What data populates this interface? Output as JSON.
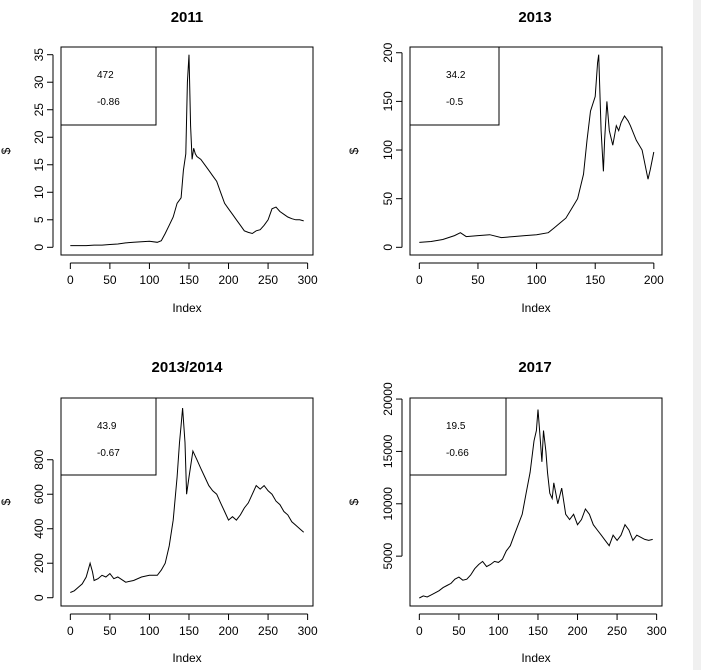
{
  "colors": {
    "background": "#ffffff",
    "line": "#000000",
    "right_edge": "#f0f0f0"
  },
  "chart_data": [
    {
      "type": "line",
      "title": "2011",
      "xlabel": "Index",
      "ylabel": "$",
      "xlim": [
        0,
        300
      ],
      "ylim": [
        0,
        35
      ],
      "xticks": [
        "0",
        "50",
        "100",
        "150",
        "200",
        "250",
        "300"
      ],
      "yticks": [
        "0",
        "5",
        "10",
        "15",
        "20",
        "25",
        "30",
        "35"
      ],
      "legend_text": [
        "472",
        "-0.86"
      ],
      "legend_position": "top-left",
      "series": [
        {
          "x": [
            0,
            10,
            20,
            30,
            40,
            50,
            60,
            70,
            80,
            90,
            100,
            110,
            115,
            120,
            125,
            130,
            135,
            140,
            143,
            146,
            148,
            150,
            152,
            154,
            156,
            158,
            160,
            165,
            170,
            175,
            180,
            185,
            190,
            195,
            200,
            205,
            210,
            215,
            220,
            225,
            230,
            235,
            240,
            245,
            250,
            255,
            260,
            265,
            270,
            275,
            280,
            285,
            290,
            295
          ],
          "y": [
            0.3,
            0.3,
            0.3,
            0.4,
            0.4,
            0.5,
            0.6,
            0.8,
            0.9,
            1.0,
            1.1,
            0.9,
            1.2,
            2.5,
            4.0,
            5.5,
            8.0,
            9.0,
            14.0,
            17.0,
            30.0,
            35.0,
            22.0,
            16.0,
            18.0,
            17.0,
            16.5,
            16.0,
            15.0,
            14.0,
            13.0,
            12.0,
            10.0,
            8.0,
            7.0,
            6.0,
            5.0,
            4.0,
            3.0,
            2.7,
            2.5,
            3.0,
            3.2,
            4.0,
            5.0,
            7.0,
            7.3,
            6.5,
            6.0,
            5.5,
            5.2,
            5.0,
            5.0,
            4.8
          ]
        }
      ]
    },
    {
      "type": "line",
      "title": "2013",
      "xlabel": "Index",
      "ylabel": "$",
      "xlim": [
        0,
        200
      ],
      "ylim": [
        0,
        200
      ],
      "xticks": [
        "0",
        "50",
        "100",
        "150",
        "200"
      ],
      "yticks": [
        "0",
        "50",
        "100",
        "150",
        "200"
      ],
      "legend_text": [
        "34.2",
        "-0.5"
      ],
      "legend_position": "top-left",
      "series": [
        {
          "x": [
            0,
            10,
            20,
            30,
            35,
            40,
            50,
            60,
            70,
            80,
            90,
            100,
            110,
            115,
            120,
            125,
            130,
            135,
            140,
            143,
            146,
            150,
            152,
            153,
            155,
            157,
            158,
            160,
            162,
            165,
            168,
            170,
            172,
            175,
            178,
            180,
            185,
            190,
            195,
            197,
            200
          ],
          "y": [
            5,
            6,
            8,
            12,
            15,
            11,
            12,
            13,
            10,
            11,
            12,
            13,
            15,
            20,
            25,
            30,
            40,
            50,
            75,
            110,
            140,
            155,
            190,
            198,
            120,
            78,
            110,
            150,
            120,
            105,
            125,
            120,
            128,
            135,
            130,
            125,
            110,
            100,
            70,
            80,
            98
          ]
        }
      ]
    },
    {
      "type": "line",
      "title": "2013/2014",
      "xlabel": "Index",
      "ylabel": "$",
      "xlim": [
        0,
        300
      ],
      "ylim": [
        0,
        1100
      ],
      "xticks": [
        "0",
        "50",
        "100",
        "150",
        "200",
        "250",
        "300"
      ],
      "yticks": [
        "0",
        "200",
        "400",
        "600",
        "800"
      ],
      "legend_text": [
        "43.9",
        "-0.67"
      ],
      "legend_position": "top-left",
      "series": [
        {
          "x": [
            0,
            5,
            10,
            15,
            20,
            25,
            28,
            30,
            35,
            40,
            45,
            50,
            55,
            60,
            70,
            80,
            90,
            100,
            110,
            115,
            120,
            125,
            130,
            135,
            138,
            140,
            142,
            145,
            147,
            150,
            155,
            160,
            165,
            170,
            175,
            180,
            185,
            190,
            195,
            200,
            205,
            210,
            215,
            220,
            225,
            230,
            235,
            240,
            245,
            250,
            255,
            260,
            265,
            270,
            275,
            280,
            285,
            290,
            295
          ],
          "y": [
            30,
            40,
            60,
            80,
            120,
            200,
            150,
            100,
            110,
            130,
            120,
            140,
            110,
            120,
            90,
            100,
            120,
            130,
            130,
            160,
            200,
            300,
            450,
            700,
            900,
            1000,
            1100,
            900,
            600,
            700,
            850,
            800,
            750,
            700,
            650,
            620,
            600,
            550,
            500,
            450,
            470,
            450,
            480,
            520,
            550,
            600,
            650,
            630,
            650,
            620,
            600,
            560,
            540,
            500,
            480,
            440,
            420,
            400,
            380
          ]
        }
      ]
    },
    {
      "type": "line",
      "title": "2017",
      "xlabel": "Index",
      "ylabel": "$",
      "xlim": [
        0,
        300
      ],
      "ylim": [
        0,
        20000
      ],
      "xticks": [
        "0",
        "50",
        "100",
        "150",
        "200",
        "250",
        "300"
      ],
      "yticks": [
        "5000",
        "10000",
        "15000",
        "20000"
      ],
      "legend_text": [
        "19.5",
        "-0.66"
      ],
      "legend_position": "top-left",
      "series": [
        {
          "x": [
            0,
            5,
            10,
            15,
            20,
            25,
            30,
            35,
            40,
            45,
            50,
            55,
            60,
            65,
            70,
            75,
            80,
            85,
            90,
            95,
            100,
            105,
            110,
            115,
            120,
            125,
            130,
            135,
            140,
            145,
            148,
            150,
            152,
            155,
            157,
            160,
            162,
            165,
            168,
            170,
            175,
            180,
            185,
            190,
            195,
            200,
            205,
            210,
            215,
            220,
            225,
            230,
            235,
            240,
            245,
            250,
            255,
            260,
            265,
            270,
            275,
            280,
            285,
            290,
            295
          ],
          "y": [
            1000,
            1200,
            1100,
            1300,
            1500,
            1700,
            2000,
            2200,
            2400,
            2800,
            3000,
            2700,
            2800,
            3200,
            3800,
            4200,
            4500,
            4000,
            4200,
            4500,
            4400,
            4700,
            5500,
            6000,
            7000,
            8000,
            9000,
            11000,
            13000,
            16000,
            17000,
            19000,
            17000,
            14000,
            17000,
            15000,
            13000,
            11000,
            10500,
            12000,
            10000,
            11500,
            9000,
            8500,
            9000,
            8000,
            8500,
            9500,
            9000,
            8000,
            7500,
            7000,
            6500,
            6000,
            7000,
            6500,
            7000,
            8000,
            7500,
            6500,
            7000,
            6800,
            6600,
            6500,
            6600
          ]
        }
      ]
    }
  ]
}
